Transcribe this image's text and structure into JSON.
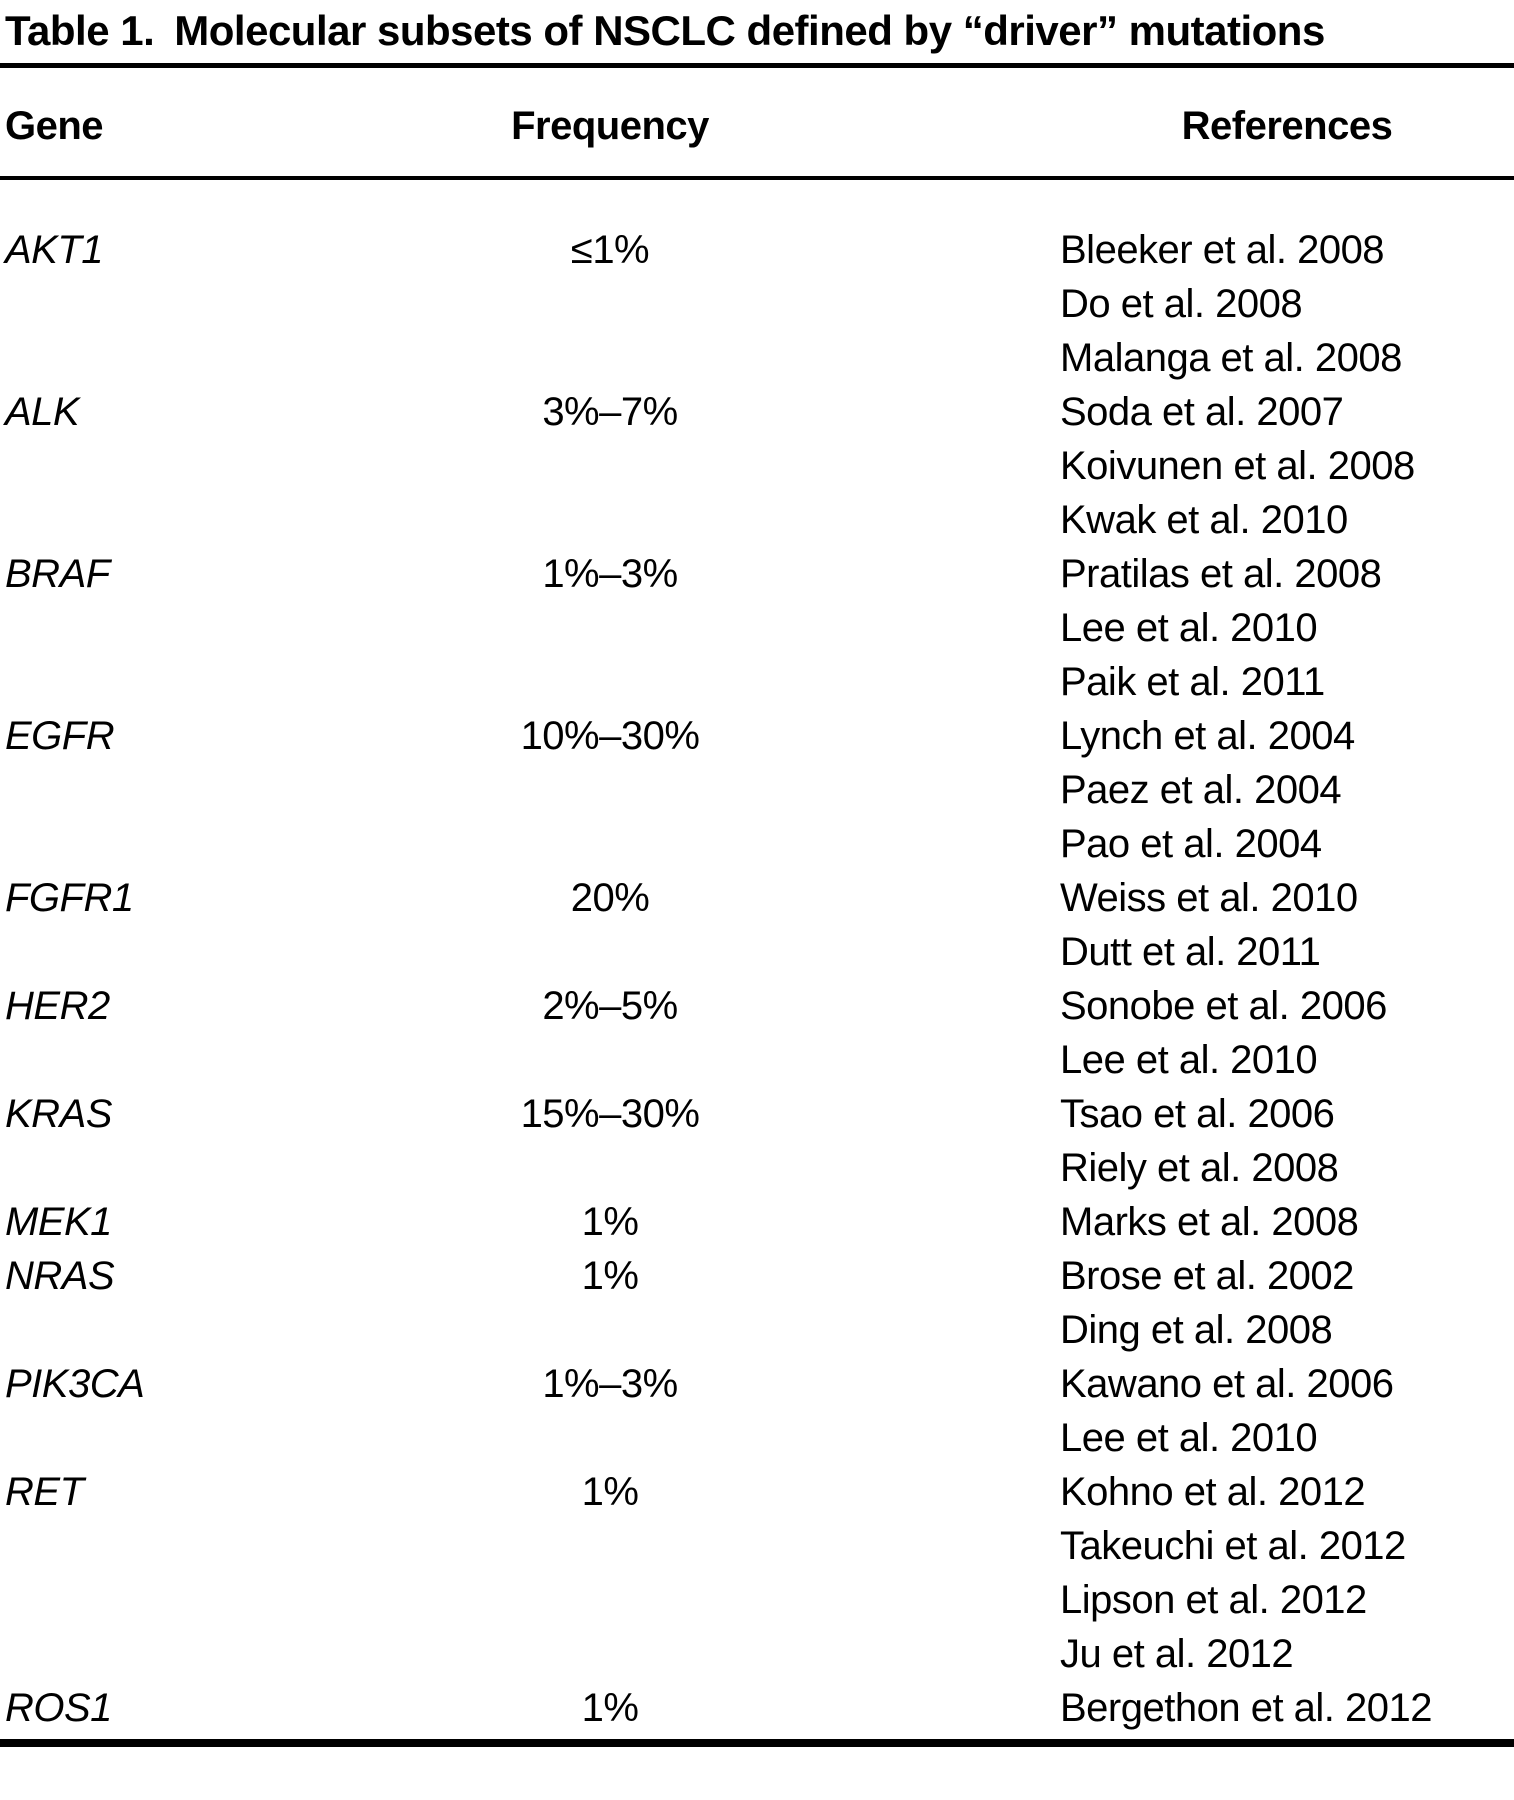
{
  "table": {
    "label": "Table 1.",
    "title": "Molecular subsets of NSCLC defined by “driver” mutations",
    "columns": [
      "Gene",
      "Frequency",
      "References"
    ],
    "rows": [
      {
        "gene": "AKT1",
        "frequency": "≤1%",
        "references": [
          "Bleeker et al. 2008",
          "Do et al. 2008",
          "Malanga et al. 2008"
        ]
      },
      {
        "gene": "ALK",
        "frequency": "3%–7%",
        "references": [
          "Soda et al. 2007",
          "Koivunen et al. 2008",
          "Kwak et al. 2010"
        ]
      },
      {
        "gene": "BRAF",
        "frequency": "1%–3%",
        "references": [
          "Pratilas et al. 2008",
          "Lee et al. 2010",
          "Paik et al. 2011"
        ]
      },
      {
        "gene": "EGFR",
        "frequency": "10%–30%",
        "references": [
          "Lynch et al. 2004",
          "Paez et al. 2004",
          "Pao et al. 2004"
        ]
      },
      {
        "gene": "FGFR1",
        "frequency": "20%",
        "references": [
          "Weiss et al. 2010",
          "Dutt et al. 2011"
        ]
      },
      {
        "gene": "HER2",
        "frequency": "2%–5%",
        "references": [
          "Sonobe et al. 2006",
          "Lee et al. 2010"
        ]
      },
      {
        "gene": "KRAS",
        "frequency": "15%–30%",
        "references": [
          "Tsao et al. 2006",
          "Riely et al. 2008"
        ]
      },
      {
        "gene": "MEK1",
        "frequency": "1%",
        "references": [
          "Marks et al. 2008"
        ]
      },
      {
        "gene": "NRAS",
        "frequency": "1%",
        "references": [
          "Brose et al. 2002",
          "Ding et al. 2008"
        ]
      },
      {
        "gene": "PIK3CA",
        "frequency": "1%–3%",
        "references": [
          "Kawano et al. 2006",
          "Lee et al. 2010"
        ]
      },
      {
        "gene": "RET",
        "frequency": "1%",
        "references": [
          "Kohno et al. 2012",
          "Takeuchi et al. 2012",
          "Lipson et al. 2012",
          "Ju et al. 2012"
        ]
      },
      {
        "gene": "ROS1",
        "frequency": "1%",
        "references": [
          "Bergethon et al. 2012"
        ]
      }
    ]
  }
}
